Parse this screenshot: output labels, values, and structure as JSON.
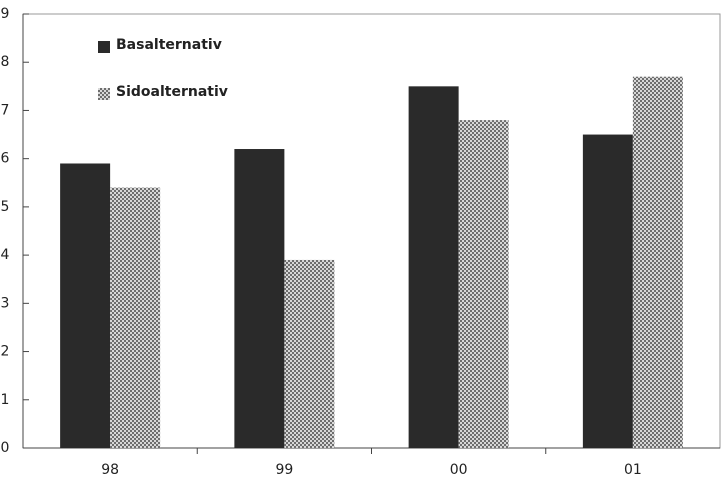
{
  "chart_data": {
    "type": "bar",
    "categories": [
      "98",
      "99",
      "00",
      "01"
    ],
    "series": [
      {
        "name": "Basalternativ",
        "color": "#2a2a2a",
        "values": [
          5.9,
          6.2,
          7.5,
          6.5
        ]
      },
      {
        "name": "Sidoalternativ",
        "color": "#6e6e6e",
        "values": [
          5.4,
          3.9,
          6.8,
          7.7
        ]
      }
    ],
    "ylim": [
      0,
      9
    ],
    "yticks": [
      0,
      1,
      2,
      3,
      4,
      5,
      6,
      7,
      8,
      9
    ],
    "grid": false,
    "legend": "upper left"
  }
}
